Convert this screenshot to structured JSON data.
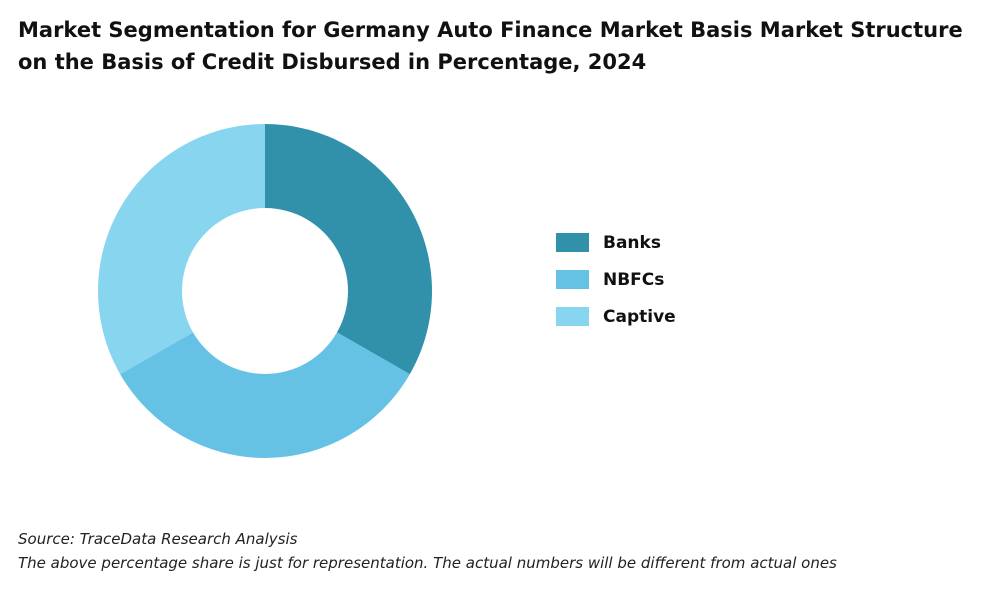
{
  "title_line1": "Market Segmentation for Germany Auto Finance Market Basis Market Structure",
  "title_line2": "on the Basis of Credit Disbursed in Percentage, 2024",
  "chart_data": {
    "type": "pie",
    "categories": [
      "Banks",
      "NBFCs",
      "Captive"
    ],
    "values": [
      33.3,
      33.4,
      33.3
    ],
    "colors": [
      "#3191AA",
      "#66C2E4",
      "#88D5F0"
    ],
    "legend_position": "right"
  },
  "footer": {
    "source": "Source: TraceData Research Analysis",
    "note": "The above percentage share is just for representation. The actual numbers will be different from actual ones"
  }
}
